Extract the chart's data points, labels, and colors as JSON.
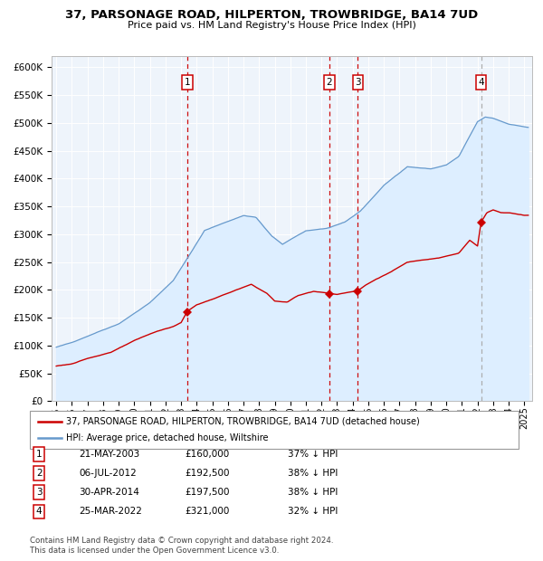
{
  "title": "37, PARSONAGE ROAD, HILPERTON, TROWBRIDGE, BA14 7UD",
  "subtitle": "Price paid vs. HM Land Registry's House Price Index (HPI)",
  "title_fontsize": 9.5,
  "subtitle_fontsize": 8,
  "xlim": [
    1994.7,
    2025.5
  ],
  "ylim": [
    0,
    620000
  ],
  "yticks": [
    0,
    50000,
    100000,
    150000,
    200000,
    250000,
    300000,
    350000,
    400000,
    450000,
    500000,
    550000,
    600000
  ],
  "ytick_labels": [
    "£0",
    "£50K",
    "£100K",
    "£150K",
    "£200K",
    "£250K",
    "£300K",
    "£350K",
    "£400K",
    "£450K",
    "£500K",
    "£550K",
    "£600K"
  ],
  "xtick_years": [
    1995,
    1996,
    1997,
    1998,
    1999,
    2000,
    2001,
    2002,
    2003,
    2004,
    2005,
    2006,
    2007,
    2008,
    2009,
    2010,
    2011,
    2012,
    2013,
    2014,
    2015,
    2016,
    2017,
    2018,
    2019,
    2020,
    2021,
    2022,
    2023,
    2024,
    2025
  ],
  "sale_color": "#cc0000",
  "hpi_color": "#6699cc",
  "hpi_fill_color": "#ddeeff",
  "background_color": "#eef4fb",
  "grid_color": "#ffffff",
  "sale_points": [
    {
      "num": 1,
      "year": 2003.388,
      "price": 160000,
      "date": "21-MAY-2003",
      "pct": "37%"
    },
    {
      "num": 2,
      "year": 2012.508,
      "price": 192500,
      "date": "06-JUL-2012",
      "pct": "38%"
    },
    {
      "num": 3,
      "year": 2014.33,
      "price": 197500,
      "date": "30-APR-2014",
      "pct": "38%"
    },
    {
      "num": 4,
      "year": 2022.227,
      "price": 321000,
      "date": "25-MAR-2022",
      "pct": "32%"
    }
  ],
  "vline_color": "#cc0000",
  "vline4_color": "#aaaaaa",
  "legend_entries": [
    "37, PARSONAGE ROAD, HILPERTON, TROWBRIDGE, BA14 7UD (detached house)",
    "HPI: Average price, detached house, Wiltshire"
  ],
  "table_rows": [
    [
      "1",
      "21-MAY-2003",
      "£160,000",
      "37% ↓ HPI"
    ],
    [
      "2",
      "06-JUL-2012",
      "£192,500",
      "38% ↓ HPI"
    ],
    [
      "3",
      "30-APR-2014",
      "£197,500",
      "38% ↓ HPI"
    ],
    [
      "4",
      "25-MAR-2022",
      "£321,000",
      "32% ↓ HPI"
    ]
  ],
  "footnote": "Contains HM Land Registry data © Crown copyright and database right 2024.\nThis data is licensed under the Open Government Licence v3.0."
}
